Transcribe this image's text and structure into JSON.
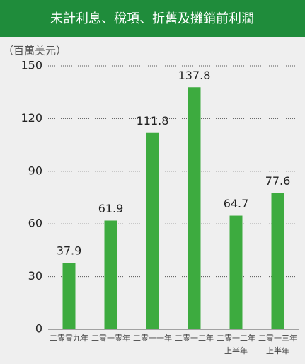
{
  "chart_data": {
    "type": "bar",
    "title": "未計利息、稅項、折舊及攤銷前利潤",
    "y_label": "（百萬美元）",
    "categories": [
      [
        "二零零九年"
      ],
      [
        "二零一零年"
      ],
      [
        "二零一一年"
      ],
      [
        "二零一二年"
      ],
      [
        "二零一二年",
        "上半年"
      ],
      [
        "二零一三年",
        "上半年"
      ]
    ],
    "values": [
      37.9,
      61.9,
      111.8,
      137.8,
      64.7,
      77.6
    ],
    "color": "#3dab3f",
    "ylim": [
      0,
      150
    ],
    "yticks": [
      0,
      30,
      60,
      90,
      120,
      150
    ],
    "grid": true
  }
}
